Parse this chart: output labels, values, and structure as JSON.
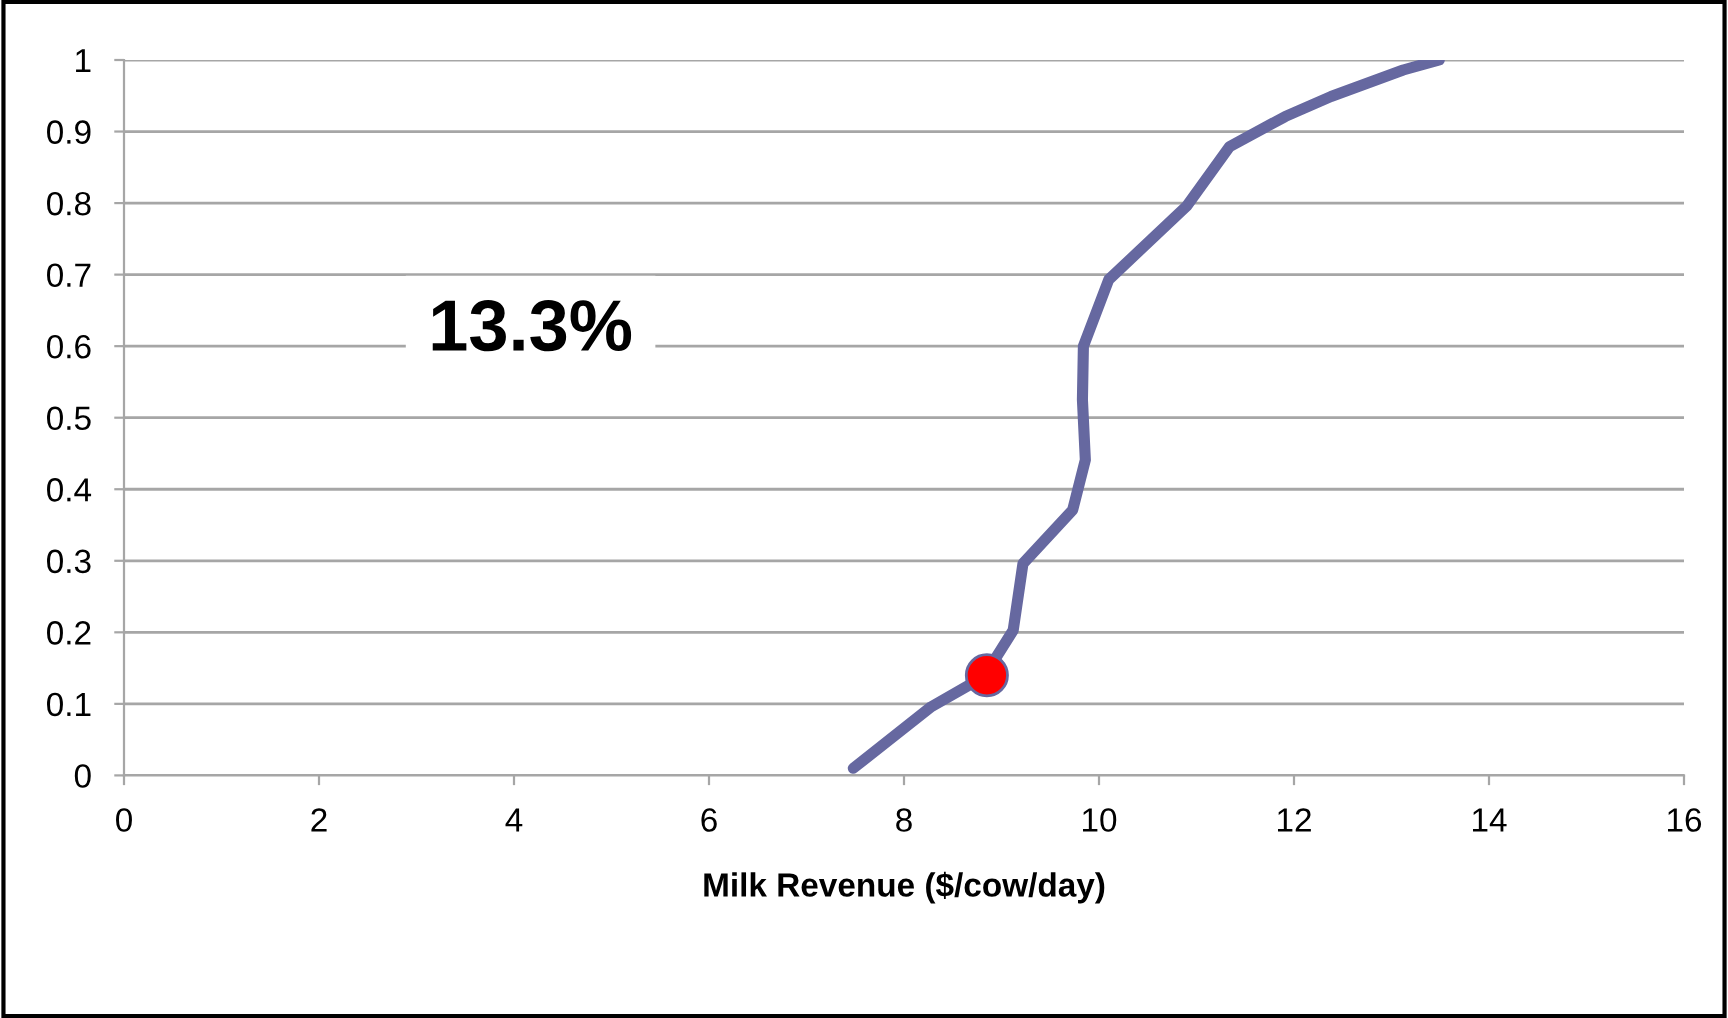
{
  "chart_data": {
    "type": "line",
    "xlabel": "Milk Revenue ($/cow/day)",
    "annotations": [
      "13.3%"
    ],
    "xlim": [
      0,
      16
    ],
    "xticks": [
      0,
      2,
      4,
      6,
      8,
      10,
      12,
      14,
      16
    ],
    "ylim": [
      0,
      1
    ],
    "yticks": [
      0,
      0.1,
      0.2,
      0.3,
      0.4,
      0.5,
      0.6,
      0.7,
      0.8,
      0.9,
      1
    ],
    "grid": "y",
    "legend": false,
    "series": [
      {
        "color": "#6668a0",
        "x": [
          7.48,
          8.28,
          8.82,
          9.12,
          9.22,
          9.73,
          9.86,
          9.83,
          9.84,
          10.1,
          10.9,
          11.34,
          11.91,
          12.38,
          13.12,
          13.49
        ],
        "values": [
          0.01,
          0.096,
          0.138,
          0.203,
          0.296,
          0.371,
          0.441,
          0.525,
          0.6,
          0.693,
          0.796,
          0.879,
          0.921,
          0.949,
          0.986,
          1.0
        ]
      },
      {
        "type": "scatter",
        "color": "#ff0000",
        "x": [
          8.85
        ],
        "values": [
          0.14
        ]
      }
    ]
  }
}
